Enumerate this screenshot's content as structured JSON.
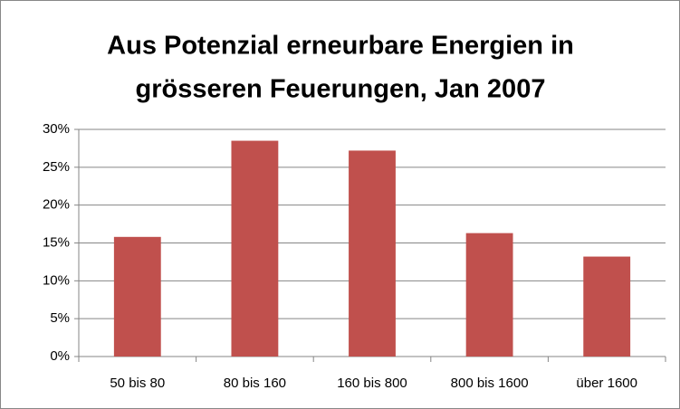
{
  "chart_data": {
    "type": "bar",
    "title": [
      "Aus Potenzial erneurbare Energien in",
      "grösseren Feuerungen, Jan 2007"
    ],
    "categories": [
      "50 bis 80",
      "80 bis 160",
      "160 bis 800",
      "800 bis 1600",
      "über 1600"
    ],
    "values": [
      15.8,
      28.5,
      27.2,
      16.3,
      13.2
    ],
    "color": "#c0504d",
    "ylim": [
      0,
      30
    ],
    "yticks": [
      {
        "value": 0,
        "label": "0%"
      },
      {
        "value": 5,
        "label": "5%"
      },
      {
        "value": 10,
        "label": "10%"
      },
      {
        "value": 15,
        "label": "15%"
      },
      {
        "value": 20,
        "label": "20%"
      },
      {
        "value": 25,
        "label": "25%"
      },
      {
        "value": 30,
        "label": "30%"
      }
    ],
    "grid": true
  }
}
